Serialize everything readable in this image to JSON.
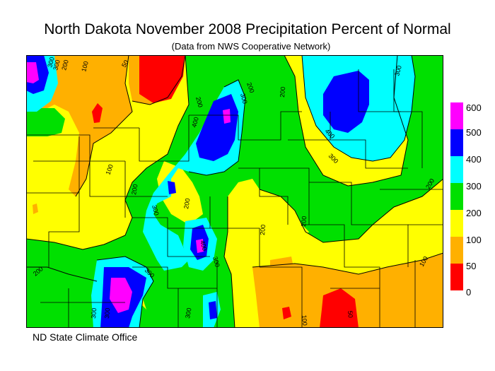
{
  "title": "North Dakota November 2008 Precipitation Percent of Normal",
  "subtitle": "(Data from NWS Cooperative Network)",
  "footer": "ND State Climate Office",
  "legend": {
    "bins": [
      {
        "label": "600",
        "color": "#ff00ff"
      },
      {
        "label": "500",
        "color": "#0000ff"
      },
      {
        "label": "400",
        "color": "#00ffff"
      },
      {
        "label": "300",
        "color": "#00e000"
      },
      {
        "label": "200",
        "color": "#ffff00"
      },
      {
        "label": "100",
        "color": "#ffb000"
      },
      {
        "label": "50",
        "color": "#ff0000"
      },
      {
        "label": "0",
        "color": "#ff0000"
      }
    ],
    "colors": {
      "magenta": "#ff00ff",
      "blue": "#0000ff",
      "cyan": "#00ffff",
      "green": "#00e000",
      "yellow": "#ffff00",
      "orange": "#ffb000",
      "red": "#ff0000"
    }
  },
  "contour_labels": [
    "300",
    "300",
    "200",
    "100",
    "50",
    "200",
    "300",
    "200",
    "300",
    "400",
    "300",
    "100",
    "400",
    "200",
    "300",
    "200",
    "200",
    "200",
    "400",
    "300",
    "200",
    "300",
    "300",
    "300",
    "300",
    "200",
    "100",
    "200",
    "100",
    "50"
  ]
}
